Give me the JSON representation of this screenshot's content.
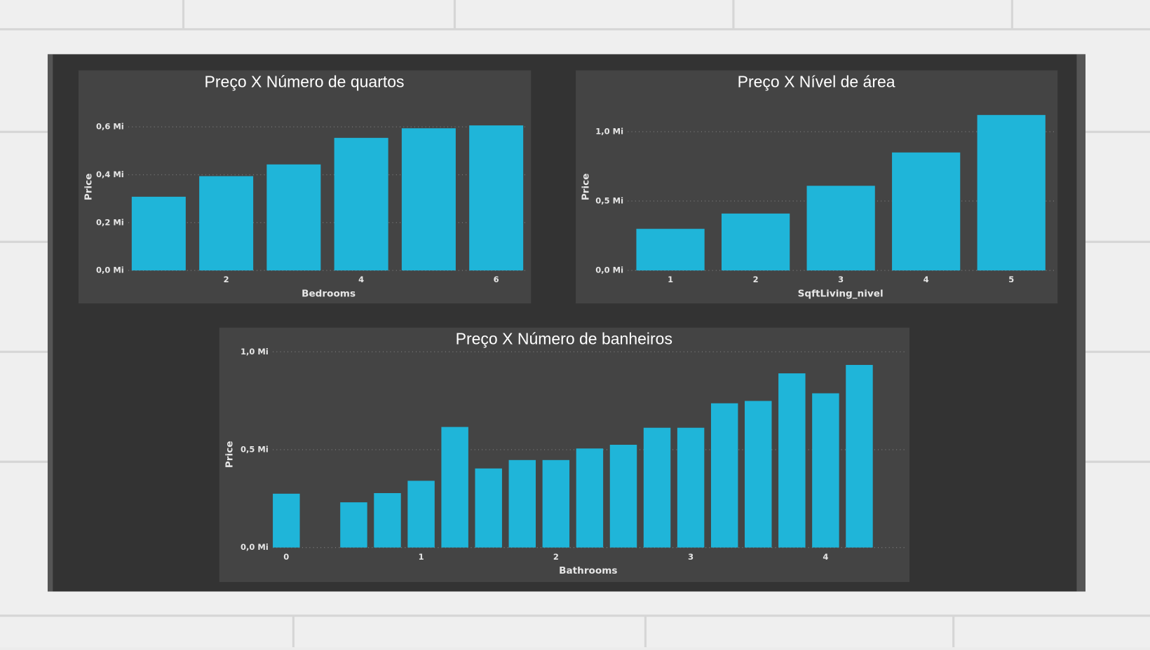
{
  "chart_data": [
    {
      "type": "bar",
      "title": "Preço X Número de quartos",
      "x_label": "Bedrooms",
      "y_label": "Price",
      "x": [
        1,
        2,
        3,
        4,
        5,
        6
      ],
      "values": [
        0.308,
        0.394,
        0.443,
        0.554,
        0.594,
        0.606
      ],
      "color": "#1fb5d9",
      "xlim": [
        0.55,
        6.45
      ],
      "xticks": [
        2,
        4,
        6
      ],
      "ylim": [
        0,
        0.64
      ],
      "yticks": [
        {
          "value": 0,
          "label": "0,0 Mi"
        },
        {
          "value": 0.2,
          "label": "0,2 Mi"
        },
        {
          "value": 0.4,
          "label": "0,4 Mi"
        },
        {
          "value": 0.6,
          "label": "0,6 Mi"
        }
      ],
      "grid": true
    },
    {
      "type": "bar",
      "title": "Preço X Nível de área",
      "x_label": "SqftLiving_nivel",
      "y_label": "Price",
      "x": [
        1,
        2,
        3,
        4,
        5
      ],
      "values": [
        0.3,
        0.41,
        0.61,
        0.85,
        1.12
      ],
      "color": "#1fb5d9",
      "xlim": [
        0.5,
        5.5
      ],
      "xticks": [
        1,
        2,
        3,
        4,
        5
      ],
      "ylim": [
        0,
        1.13
      ],
      "yticks": [
        {
          "value": 0,
          "label": "0,0 Mi"
        },
        {
          "value": 0.5,
          "label": "0,5 Mi"
        },
        {
          "value": 1,
          "label": "1,0 Mi"
        }
      ],
      "grid": true
    },
    {
      "type": "bar",
      "title": "Preço X Número de banheiros",
      "x_label": "Bathrooms",
      "y_label": "Price",
      "x": [
        0,
        0.5,
        0.75,
        1,
        1.25,
        1.5,
        1.75,
        2,
        2.25,
        2.5,
        2.75,
        3,
        3.25,
        3.5,
        3.75,
        4,
        4.25
      ],
      "values": [
        0.275,
        0.231,
        0.278,
        0.341,
        0.616,
        0.404,
        0.447,
        0.447,
        0.506,
        0.525,
        0.612,
        0.612,
        0.737,
        0.749,
        0.89,
        0.788,
        0.933
      ],
      "color": "#1fb5d9",
      "xlim": [
        -0.1,
        4.6
      ],
      "xticks": [
        0,
        1,
        2,
        3,
        4
      ],
      "ylim": [
        0,
        1.0
      ],
      "yticks": [
        {
          "value": 0,
          "label": "0,0 Mi"
        },
        {
          "value": 0.5,
          "label": "0,5 Mi"
        },
        {
          "value": 1,
          "label": "1,0 Mi"
        }
      ],
      "grid": true
    }
  ]
}
